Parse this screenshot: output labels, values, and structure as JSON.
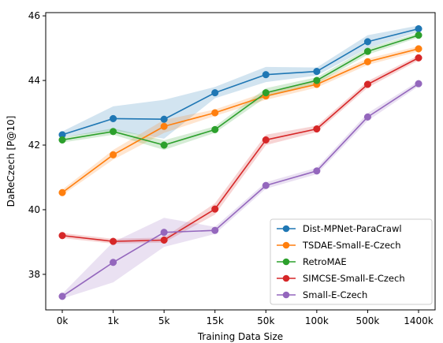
{
  "chart_data": {
    "type": "line",
    "title": "",
    "xlabel": "Training Data Size",
    "ylabel": "DaReCzech [P@10]",
    "categories": [
      "0k",
      "1k",
      "5k",
      "15k",
      "50k",
      "100k",
      "500k",
      "1400k"
    ],
    "ylim": [
      36.9,
      46.1
    ],
    "yticks": [
      38,
      40,
      42,
      44,
      46
    ],
    "grid": false,
    "legend_position": "lower-right",
    "series": [
      {
        "name": "Dist-MPNet-ParaCrawl",
        "color": "#1f77b4",
        "values": [
          42.32,
          42.82,
          42.8,
          43.62,
          44.18,
          44.28,
          45.2,
          45.6
        ],
        "band_low": [
          42.25,
          42.45,
          42.2,
          43.45,
          43.95,
          44.15,
          45.0,
          45.5
        ],
        "band_high": [
          42.42,
          43.2,
          43.4,
          43.8,
          44.42,
          44.4,
          45.4,
          45.7
        ]
      },
      {
        "name": "TSDAE-Small-E-Czech",
        "color": "#ff7f0e",
        "values": [
          40.53,
          41.7,
          42.58,
          43.0,
          43.52,
          43.88,
          44.58,
          44.98
        ],
        "band_low": [
          40.45,
          41.55,
          42.38,
          42.9,
          43.4,
          43.78,
          44.48,
          44.9
        ],
        "band_high": [
          40.62,
          41.85,
          42.78,
          43.1,
          43.64,
          43.98,
          44.68,
          45.06
        ]
      },
      {
        "name": "RetroMAE",
        "color": "#2ca02c",
        "values": [
          42.16,
          42.42,
          42.0,
          42.48,
          43.62,
          44.0,
          44.9,
          45.4
        ],
        "band_low": [
          42.08,
          42.32,
          41.85,
          42.38,
          43.48,
          43.9,
          44.8,
          45.33
        ],
        "band_high": [
          42.24,
          42.52,
          42.15,
          42.58,
          43.76,
          44.1,
          45.0,
          45.47
        ]
      },
      {
        "name": "SIMCSE-Small-E-Czech",
        "color": "#d62728",
        "values": [
          39.2,
          39.02,
          39.06,
          40.02,
          42.16,
          42.5,
          43.88,
          44.7
        ],
        "band_low": [
          39.12,
          38.95,
          38.98,
          39.85,
          42.0,
          42.4,
          43.78,
          44.62
        ],
        "band_high": [
          39.28,
          39.1,
          39.14,
          40.2,
          42.32,
          42.6,
          43.98,
          44.78
        ]
      },
      {
        "name": "Small-E-Czech",
        "color": "#9467bd",
        "values": [
          37.32,
          38.37,
          39.3,
          39.36,
          40.75,
          41.2,
          42.87,
          43.9
        ],
        "band_low": [
          37.25,
          37.75,
          38.85,
          39.25,
          40.65,
          41.1,
          42.75,
          43.82
        ],
        "band_high": [
          37.4,
          39.0,
          39.75,
          39.47,
          40.85,
          41.3,
          42.99,
          43.98
        ]
      }
    ]
  }
}
